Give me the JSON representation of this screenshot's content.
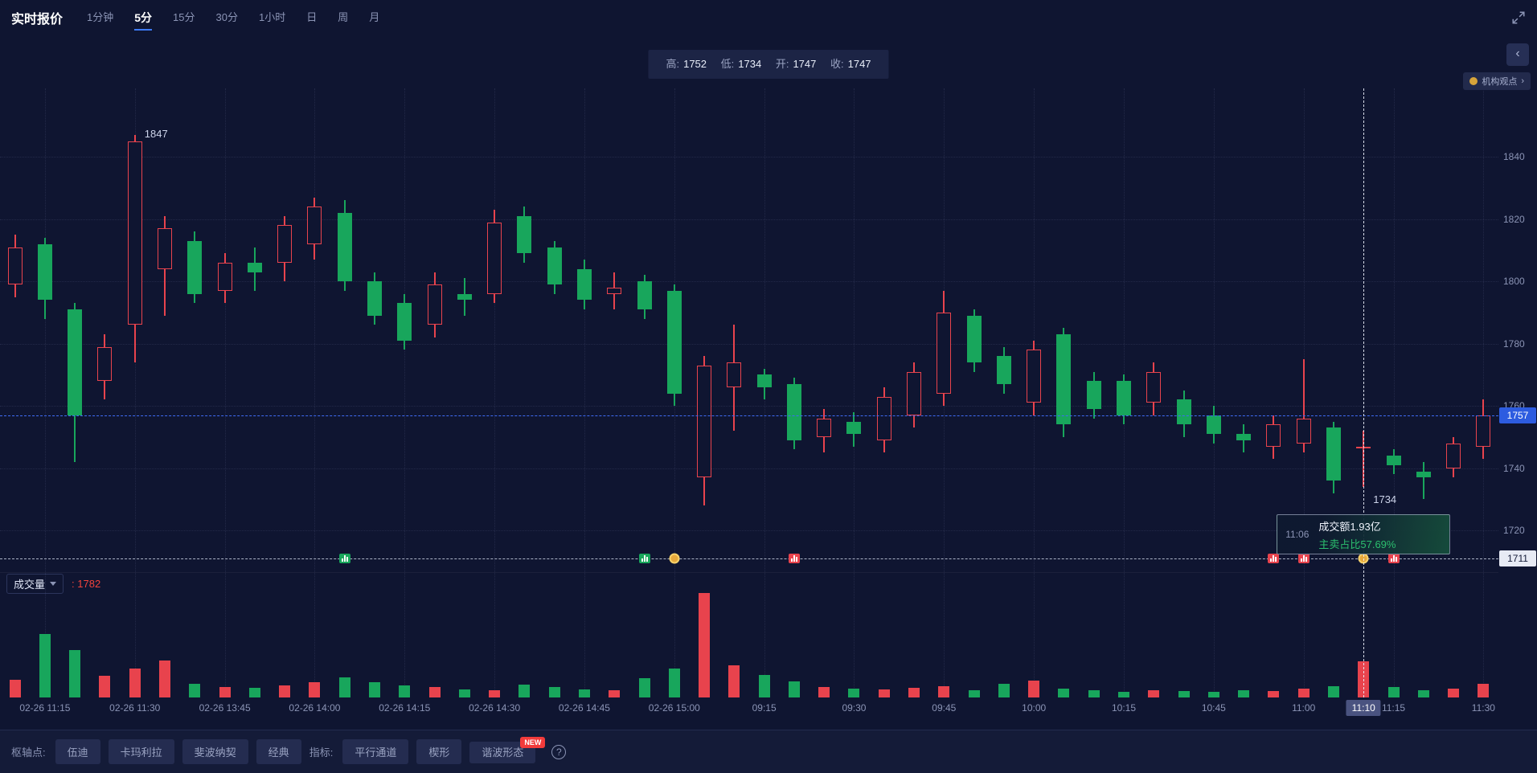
{
  "header": {
    "title": "实时报价",
    "tabs": [
      "1分钟",
      "5分",
      "15分",
      "30分",
      "1小时",
      "日",
      "周",
      "月"
    ],
    "active_tab": "5分"
  },
  "ohlc": {
    "high_label": "高:",
    "high_value": "1752",
    "low_label": "低:",
    "low_value": "1734",
    "open_label": "开:",
    "open_value": "1747",
    "close_label": "收:",
    "close_value": "1747"
  },
  "side": {
    "collapse_icon": "‹",
    "org_view_label": "机构观点",
    "org_view_chevron": "›"
  },
  "volume_header": {
    "label": "成交量",
    "value_prefix": ":",
    "value": "1782"
  },
  "footer": {
    "pivot_label": "枢轴点:",
    "pivot_buttons": [
      "伍迪",
      "卡玛利拉",
      "斐波纳契",
      "经典"
    ],
    "indicator_label": "指标:",
    "indicator_buttons": [
      "平行通道",
      "楔形",
      "谐波形态"
    ],
    "new_badge": "NEW",
    "help_icon": "?"
  },
  "chart_data": {
    "type": "candlestick+volume",
    "timeframe": "5分",
    "ylim": [
      1711,
      1862
    ],
    "grid_prices": [
      1840,
      1820,
      1800,
      1780,
      1760,
      1740,
      1720
    ],
    "current_price": 1757,
    "bottom_line_price": 1711,
    "annotations": {
      "high": {
        "index": 4,
        "price": 1847,
        "label": "1847"
      },
      "low": {
        "index": 45,
        "price": 1734,
        "label": "1734"
      }
    },
    "crosshair": {
      "index": 45,
      "time_badge": "11:10",
      "tooltip": {
        "time": "11:06",
        "line1": "成交额1.93亿",
        "line2": "主卖占比57.69%"
      }
    },
    "candles": [
      [
        1799,
        1815,
        1795,
        1811
      ],
      [
        1812,
        1814,
        1788,
        1794
      ],
      [
        1791,
        1793,
        1742,
        1757
      ],
      [
        1768,
        1783,
        1762,
        1779
      ],
      [
        1786,
        1847,
        1774,
        1845
      ],
      [
        1804,
        1821,
        1789,
        1817
      ],
      [
        1813,
        1816,
        1793,
        1796
      ],
      [
        1797,
        1809,
        1793,
        1806
      ],
      [
        1806,
        1811,
        1797,
        1803
      ],
      [
        1806,
        1821,
        1800,
        1818
      ],
      [
        1812,
        1827,
        1807,
        1824
      ],
      [
        1822,
        1826,
        1797,
        1800
      ],
      [
        1800,
        1803,
        1786,
        1789
      ],
      [
        1793,
        1796,
        1778,
        1781
      ],
      [
        1786,
        1803,
        1782,
        1799
      ],
      [
        1796,
        1801,
        1789,
        1794
      ],
      [
        1796,
        1823,
        1793,
        1819
      ],
      [
        1821,
        1824,
        1806,
        1809
      ],
      [
        1811,
        1813,
        1796,
        1799
      ],
      [
        1804,
        1807,
        1791,
        1794
      ],
      [
        1796,
        1803,
        1791,
        1798
      ],
      [
        1800,
        1802,
        1788,
        1791
      ],
      [
        1797,
        1799,
        1760,
        1764
      ],
      [
        1737,
        1776,
        1728,
        1773
      ],
      [
        1766,
        1786,
        1752,
        1774
      ],
      [
        1770,
        1772,
        1762,
        1766
      ],
      [
        1767,
        1769,
        1746,
        1749
      ],
      [
        1750,
        1759,
        1745,
        1756
      ],
      [
        1755,
        1758,
        1747,
        1751
      ],
      [
        1749,
        1766,
        1745,
        1763
      ],
      [
        1757,
        1774,
        1753,
        1771
      ],
      [
        1764,
        1797,
        1760,
        1790
      ],
      [
        1789,
        1791,
        1771,
        1774
      ],
      [
        1776,
        1779,
        1764,
        1767
      ],
      [
        1761,
        1781,
        1757,
        1778
      ],
      [
        1783,
        1785,
        1750,
        1754
      ],
      [
        1768,
        1771,
        1756,
        1759
      ],
      [
        1768,
        1770,
        1754,
        1757
      ],
      [
        1761,
        1774,
        1757,
        1771
      ],
      [
        1762,
        1765,
        1750,
        1754
      ],
      [
        1757,
        1760,
        1748,
        1751
      ],
      [
        1751,
        1754,
        1745,
        1749
      ],
      [
        1747,
        1757,
        1743,
        1754
      ],
      [
        1748,
        1775,
        1745,
        1756
      ],
      [
        1753,
        1755,
        1732,
        1736
      ],
      [
        1747,
        1752,
        1734,
        1747
      ],
      [
        1744,
        1746,
        1738,
        1741
      ],
      [
        1739,
        1742,
        1730,
        1737
      ],
      [
        1740,
        1750,
        1737,
        1748
      ],
      [
        1747,
        1762,
        1743,
        1757
      ]
    ],
    "volumes": [
      900,
      3150,
      2350,
      1080,
      1450,
      1850,
      680,
      540,
      470,
      610,
      780,
      1020,
      760,
      590,
      510,
      420,
      370,
      640,
      510,
      420,
      350,
      980,
      1450,
      5200,
      1600,
      1130,
      810,
      530,
      450,
      390,
      470,
      550,
      370,
      680,
      840,
      450,
      370,
      300,
      370,
      330,
      300,
      370,
      330,
      460,
      560,
      1782,
      510,
      370,
      450,
      690
    ],
    "ticks": [
      {
        "i": 1,
        "label": "02-26 11:15"
      },
      {
        "i": 4,
        "label": "02-26 11:30"
      },
      {
        "i": 7,
        "label": "02-26 13:45"
      },
      {
        "i": 10,
        "label": "02-26 14:00"
      },
      {
        "i": 13,
        "label": "02-26 14:15"
      },
      {
        "i": 16,
        "label": "02-26 14:30"
      },
      {
        "i": 19,
        "label": "02-26 14:45"
      },
      {
        "i": 22,
        "label": "02-26 15:00"
      },
      {
        "i": 25,
        "label": "09:15"
      },
      {
        "i": 28,
        "label": "09:30"
      },
      {
        "i": 31,
        "label": "09:45"
      },
      {
        "i": 34,
        "label": "10:00"
      },
      {
        "i": 37,
        "label": "10:15"
      },
      {
        "i": 40,
        "label": "10:45"
      },
      {
        "i": 43,
        "label": "11:00"
      },
      {
        "i": 45,
        "label": "11:10",
        "highlight": true
      },
      {
        "i": 46,
        "label": "11:15"
      },
      {
        "i": 49,
        "label": "11:30"
      }
    ],
    "markers": [
      {
        "i": 11,
        "type": "bars-green"
      },
      {
        "i": 21,
        "type": "bars-green"
      },
      {
        "i": 22,
        "type": "coin"
      },
      {
        "i": 26,
        "type": "bars-red"
      },
      {
        "i": 42,
        "type": "bars-red"
      },
      {
        "i": 43,
        "type": "bars-red"
      },
      {
        "i": 45,
        "type": "coin"
      },
      {
        "i": 46,
        "type": "bars-red"
      }
    ],
    "colors": {
      "up": "#e8434d",
      "down": "#18a65c",
      "accent": "#3e7bfa",
      "current_price_line": "#3f6bf5",
      "volume_value": "#f0433c",
      "tooltip_gain": "#2bbf6e"
    }
  }
}
